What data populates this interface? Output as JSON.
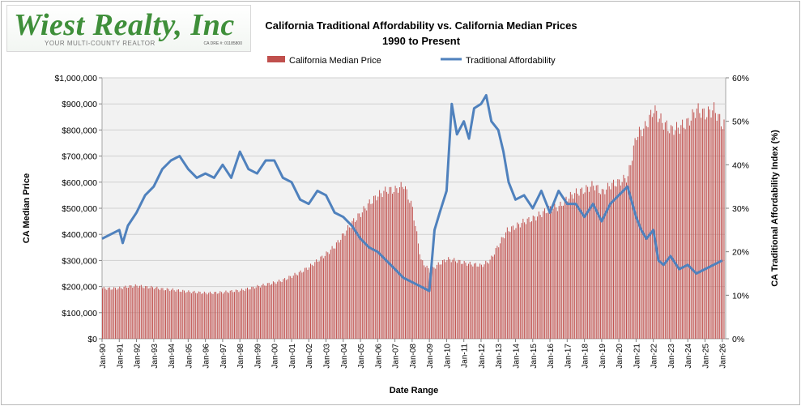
{
  "logo": {
    "name": "Wiest Realty, Inc",
    "tagline": "YOUR MULTI-COUNTY REALTOR",
    "license": "CA DRE #: 01185800"
  },
  "chart_data": {
    "type": "bar+line",
    "title": "California Traditional Affordability  vs. California Median Prices",
    "subtitle": "1990 to Present",
    "xlabel": "Date Range",
    "ylabel_left": "CA Median  Price",
    "ylabel_right": "CA Traditional  Affordability Index (%)",
    "ylim_left": [
      0,
      1000000
    ],
    "ylim_right": [
      0,
      60
    ],
    "yticks_left": [
      "$0",
      "$100,000",
      "$200,000",
      "$300,000",
      "$400,000",
      "$500,000",
      "$600,000",
      "$700,000",
      "$800,000",
      "$900,000",
      "$1,000,000"
    ],
    "yticks_right": [
      "0%",
      "10%",
      "20%",
      "30%",
      "40%",
      "50%",
      "60%"
    ],
    "x_ticks": [
      "Jan-90",
      "Jan-91",
      "Jan-92",
      "Jan-93",
      "Jan-94",
      "Jan-95",
      "Jan-96",
      "Jan-97",
      "Jan-98",
      "Jan-99",
      "Jan-00",
      "Jan-01",
      "Jan-02",
      "Jan-03",
      "Jan-04",
      "Jan-05",
      "Jan-06",
      "Jan-07",
      "Jan-08",
      "Jan-09",
      "Jan-10",
      "Jan-11",
      "Jan-12",
      "Jan-13",
      "Jan-14",
      "Jan-15",
      "Jan-16",
      "Jan-17",
      "Jan-18",
      "Jan-19",
      "Jan-20",
      "Jan-21",
      "Jan-22",
      "Jan-23",
      "Jan-24",
      "Jan-25",
      "Jan-26"
    ],
    "legend": [
      "California Median Price",
      "Traditional Affordability"
    ],
    "legend_position": "top",
    "grid": true,
    "colors": {
      "bars": "#c0504d",
      "line": "#4f81bd",
      "plot_bg": "#f2f2f2"
    },
    "series": [
      {
        "name": "California Median Price",
        "type": "bar",
        "x": [
          "1990",
          "1990.5",
          "1991",
          "1991.5",
          "1992",
          "1992.5",
          "1993",
          "1993.5",
          "1994",
          "1994.5",
          "1995",
          "1995.5",
          "1996",
          "1996.5",
          "1997",
          "1997.5",
          "1998",
          "1998.5",
          "1999",
          "1999.5",
          "2000",
          "2000.5",
          "2001",
          "2001.5",
          "2002",
          "2002.5",
          "2003",
          "2003.5",
          "2004",
          "2004.5",
          "2005",
          "2005.5",
          "2006",
          "2006.5",
          "2007",
          "2007.5",
          "2008",
          "2008.5",
          "2009",
          "2009.5",
          "2010",
          "2010.5",
          "2011",
          "2011.5",
          "2012",
          "2012.5",
          "2013",
          "2013.5",
          "2014",
          "2014.5",
          "2015",
          "2015.5",
          "2016",
          "2016.5",
          "2017",
          "2017.5",
          "2018",
          "2018.5",
          "2019",
          "2019.5",
          "2020",
          "2020.5",
          "2021",
          "2021.5",
          "2022",
          "2022.5",
          "2023",
          "2023.5",
          "2024",
          "2024.5",
          "2025",
          "2025.5",
          "2026"
        ],
        "values": [
          193000,
          192000,
          194000,
          200000,
          203000,
          198000,
          196000,
          190000,
          188000,
          184000,
          180000,
          178000,
          175000,
          176000,
          178000,
          182000,
          185000,
          192000,
          200000,
          208000,
          215000,
          225000,
          240000,
          255000,
          275000,
          300000,
          325000,
          355000,
          400000,
          445000,
          480000,
          520000,
          550000,
          570000,
          570000,
          590000,
          500000,
          300000,
          260000,
          285000,
          305000,
          300000,
          290000,
          285000,
          280000,
          300000,
          360000,
          415000,
          430000,
          450000,
          460000,
          480000,
          500000,
          505000,
          540000,
          560000,
          570000,
          590000,
          560000,
          590000,
          600000,
          620000,
          780000,
          810000,
          880000,
          830000,
          800000,
          810000,
          830000,
          880000,
          860000,
          880000,
          820000
        ]
      },
      {
        "name": "Traditional Affordability",
        "type": "line",
        "x": [
          "1990",
          "1990.5",
          "1991",
          "1991.2",
          "1991.5",
          "1992",
          "1992.5",
          "1993",
          "1993.5",
          "1994",
          "1994.5",
          "1995",
          "1995.5",
          "1996",
          "1996.5",
          "1997",
          "1997.5",
          "1998",
          "1998.5",
          "1999",
          "1999.5",
          "2000",
          "2000.5",
          "2001",
          "2001.5",
          "2002",
          "2002.5",
          "2003",
          "2003.5",
          "2004",
          "2004.5",
          "2005",
          "2005.5",
          "2006",
          "2006.5",
          "2007",
          "2007.5",
          "2008",
          "2008.5",
          "2009",
          "2009.3",
          "2009.6",
          "2010",
          "2010.3",
          "2010.6",
          "2011",
          "2011.3",
          "2011.6",
          "2012",
          "2012.3",
          "2012.6",
          "2013",
          "2013.3",
          "2013.6",
          "2014",
          "2014.5",
          "2015",
          "2015.5",
          "2016",
          "2016.5",
          "2017",
          "2017.5",
          "2018",
          "2018.5",
          "2019",
          "2019.5",
          "2020",
          "2020.5",
          "2021",
          "2021.3",
          "2021.6",
          "2022",
          "2022.3",
          "2022.6",
          "2023",
          "2023.5",
          "2024",
          "2024.5",
          "2025",
          "2025.5",
          "2026"
        ],
        "values": [
          23,
          24,
          25,
          22,
          26,
          29,
          33,
          35,
          39,
          41,
          42,
          39,
          37,
          38,
          37,
          40,
          37,
          43,
          39,
          38,
          41,
          41,
          37,
          36,
          32,
          31,
          34,
          33,
          29,
          28,
          26,
          23,
          21,
          20,
          18,
          16,
          14,
          13,
          12,
          11,
          25,
          29,
          34,
          54,
          47,
          50,
          46,
          53,
          54,
          56,
          50,
          48,
          43,
          36,
          32,
          33,
          30,
          34,
          29,
          34,
          31,
          31,
          28,
          31,
          27,
          31,
          33,
          35,
          28,
          25,
          23,
          25,
          18,
          17,
          19,
          16,
          17,
          15,
          16,
          17,
          18
        ]
      }
    ]
  }
}
